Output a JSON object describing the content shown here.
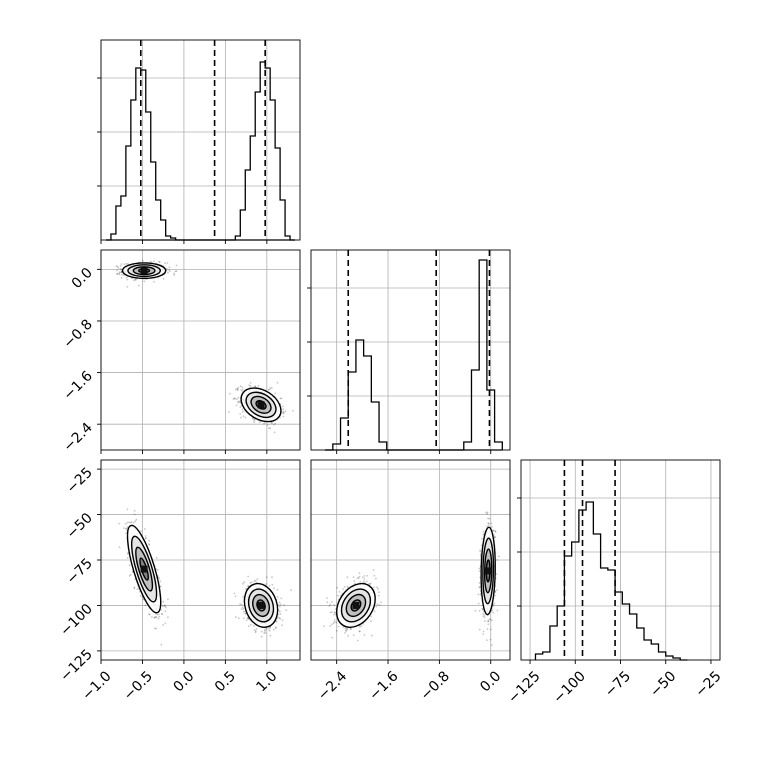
{
  "chart_data": {
    "type": "corner",
    "title": "",
    "parameters": [
      {
        "label": "",
        "range": [
          -1.0,
          1.4
        ],
        "ticks": [
          -1.0,
          -0.5,
          0.0,
          0.5,
          1.0
        ],
        "tick_labels": [
          "−1.0",
          "−0.5",
          "0.0",
          "0.5",
          "1.0"
        ]
      },
      {
        "label": "",
        "range": [
          -2.8,
          0.3
        ],
        "ticks": [
          -2.4,
          -1.6,
          -0.8,
          0.0
        ],
        "tick_labels": [
          "−2.4",
          "−1.6",
          "−0.8",
          "0.0"
        ]
      },
      {
        "label": "",
        "range": [
          -130,
          -20
        ],
        "ticks": [
          -125,
          -100,
          -75,
          -50,
          -25
        ],
        "tick_labels": [
          "−125",
          "−100",
          "−75",
          "−50",
          "−25"
        ]
      }
    ],
    "grid": true,
    "histograms": [
      {
        "parameter": 0,
        "quantiles": [
          -0.52,
          0.37,
          0.98
        ],
        "edges": [
          -0.94,
          -0.88,
          -0.82,
          -0.76,
          -0.7,
          -0.64,
          -0.58,
          -0.52,
          -0.46,
          -0.4,
          -0.34,
          -0.28,
          -0.22,
          -0.16,
          -0.1,
          -0.04,
          0.02,
          0.08,
          0.14,
          0.2,
          0.26,
          0.32,
          0.38,
          0.44,
          0.5,
          0.56,
          0.62,
          0.68,
          0.74,
          0.8,
          0.86,
          0.92,
          0.98,
          1.04,
          1.1,
          1.16,
          1.22,
          1.28,
          1.34
        ],
        "counts": [
          0,
          0.03,
          0.17,
          0.22,
          0.47,
          0.7,
          0.86,
          0.85,
          0.64,
          0.39,
          0.2,
          0.1,
          0.02,
          0.01,
          0,
          0,
          0,
          0,
          0,
          0,
          0,
          0,
          0,
          0,
          0,
          0,
          0,
          0,
          0,
          0,
          0,
          0,
          0,
          0,
          0,
          0,
          0,
          0
        ],
        "counts_right_mode": [
          0,
          0,
          0,
          0,
          0,
          0,
          0,
          0,
          0,
          0,
          0,
          0,
          0,
          0,
          0,
          0,
          0,
          0,
          0,
          0,
          0,
          0,
          0,
          0,
          0,
          0,
          0.02,
          0.15,
          0.35,
          0.52,
          0.74,
          0.89,
          0.86,
          0.7,
          0.46,
          0.2,
          0.02,
          0
        ]
      },
      {
        "parameter": 1,
        "quantiles": [
          -2.22,
          -0.85,
          -0.02
        ],
        "edges": [
          -2.58,
          -2.46,
          -2.34,
          -2.22,
          -2.1,
          -1.98,
          -1.86,
          -1.74,
          -1.62,
          -1.5,
          -1.38,
          -1.26,
          -1.14,
          -1.02,
          -0.9,
          -0.78,
          -0.66,
          -0.54,
          -0.42,
          -0.3,
          -0.18,
          -0.06,
          0.06,
          0.18
        ],
        "counts": [
          0,
          0.03,
          0.16,
          0.39,
          0.55,
          0.47,
          0.24,
          0.04,
          0,
          0,
          0,
          0,
          0,
          0,
          0,
          0,
          0,
          0,
          0,
          0,
          0,
          0,
          0
        ],
        "counts_right_mode": [
          0,
          0,
          0,
          0,
          0,
          0,
          0,
          0,
          0,
          0,
          0,
          0,
          0,
          0,
          0,
          0,
          0,
          0,
          0.04,
          0.4,
          0.95,
          0.3,
          0.04
        ]
      },
      {
        "parameter": 2,
        "quantiles": [
          -106,
          -96,
          -78
        ],
        "edges": [
          -122,
          -118,
          -114,
          -110,
          -106,
          -102,
          -98,
          -94,
          -90,
          -86,
          -82,
          -78,
          -74,
          -70,
          -66,
          -62,
          -58,
          -54,
          -50,
          -46,
          -42,
          -38
        ],
        "counts": [
          0.03,
          0.04,
          0.17,
          0.27,
          0.52,
          0.59,
          0.75,
          0.79,
          0.63,
          0.46,
          0.45,
          0.34,
          0.28,
          0.23,
          0.16,
          0.1,
          0.08,
          0.04,
          0.02,
          0.01,
          0
        ]
      }
    ],
    "scatter_panels": [
      {
        "x_param": 0,
        "y_param": 1,
        "clusters": [
          {
            "x": -0.48,
            "y": -0.02,
            "sx": 0.13,
            "sy": 0.06,
            "corr": 0.0,
            "n": 650
          },
          {
            "x": 0.93,
            "y": -2.1,
            "sx": 0.12,
            "sy": 0.13,
            "corr": -0.35,
            "n": 650
          }
        ]
      },
      {
        "x_param": 0,
        "y_param": 2,
        "clusters": [
          {
            "x": -0.48,
            "y": -80,
            "sx": 0.1,
            "sy": 12,
            "corr": -0.75,
            "n": 650
          },
          {
            "x": 0.93,
            "y": -100,
            "sx": 0.1,
            "sy": 6,
            "corr": -0.2,
            "n": 650
          }
        ]
      },
      {
        "x_param": 1,
        "y_param": 2,
        "clusters": [
          {
            "x": -2.1,
            "y": -100,
            "sx": 0.15,
            "sy": 6,
            "corr": 0.3,
            "n": 650
          },
          {
            "x": -0.04,
            "y": -81,
            "sx": 0.055,
            "sy": 12,
            "corr": 0.1,
            "n": 650
          }
        ]
      }
    ]
  }
}
